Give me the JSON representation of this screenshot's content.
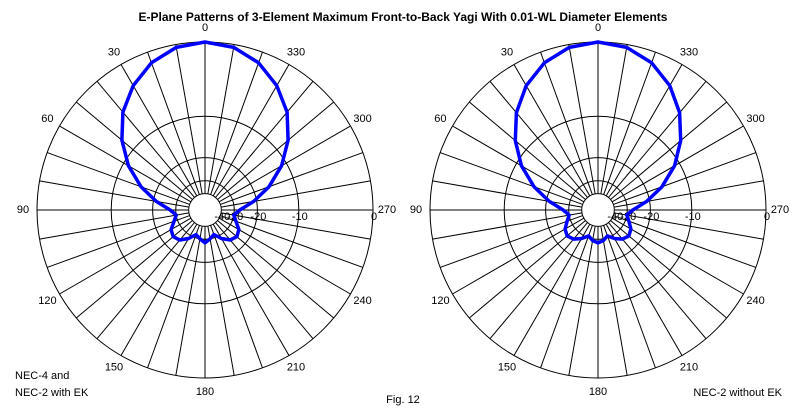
{
  "title": "E-Plane Patterns of 3-Element Maximum Front-to-Back Yagi With 0.01-WL Diameter Elements",
  "caption": "Fig. 12",
  "chart_data": [
    {
      "type": "polar",
      "annotation": [
        "NEC-4 and",
        "NEC-2 with EK"
      ],
      "thetaticks": [
        0,
        30,
        60,
        90,
        120,
        150,
        180,
        210,
        240,
        270,
        300,
        330
      ],
      "rticks": [
        -40,
        -30,
        -20,
        -10,
        0
      ],
      "rlim": [
        -40,
        0
      ],
      "rscale": "arrl-log",
      "series": [
        {
          "color": "#0000ff",
          "theta": [
            0,
            10,
            20,
            30,
            40,
            50,
            60,
            70,
            80,
            90,
            100,
            110,
            120,
            130,
            140,
            150,
            160,
            170,
            180,
            190,
            200,
            210,
            220,
            230,
            240,
            250,
            260,
            270,
            280,
            290,
            300,
            310,
            320,
            330,
            340,
            350
          ],
          "values": [
            0,
            -0.3,
            -1.2,
            -2.7,
            -4.7,
            -7.5,
            -11,
            -15.5,
            -21,
            -27,
            -30,
            -28,
            -25,
            -24,
            -25,
            -28,
            -32,
            -30,
            -28,
            -30,
            -32,
            -28,
            -25,
            -24,
            -25,
            -28,
            -30,
            -27,
            -21,
            -15.5,
            -11,
            -7.5,
            -4.7,
            -2.7,
            -1.2,
            -0.3
          ]
        }
      ]
    },
    {
      "type": "polar",
      "annotation": [
        "NEC-2 without EK"
      ],
      "thetaticks": [
        0,
        30,
        60,
        90,
        120,
        150,
        180,
        210,
        240,
        270,
        300,
        330
      ],
      "rticks": [
        -40,
        -30,
        -20,
        -10,
        0
      ],
      "rlim": [
        -40,
        0
      ],
      "rscale": "arrl-log",
      "series": [
        {
          "color": "#0000ff",
          "theta": [
            0,
            10,
            20,
            30,
            40,
            50,
            60,
            70,
            80,
            90,
            100,
            110,
            120,
            130,
            140,
            150,
            160,
            170,
            180,
            190,
            200,
            210,
            220,
            230,
            240,
            250,
            260,
            270,
            280,
            290,
            300,
            310,
            320,
            330,
            340,
            350
          ],
          "values": [
            0,
            -0.3,
            -1.2,
            -2.7,
            -4.8,
            -7.6,
            -11,
            -15.5,
            -21,
            -27,
            -30,
            -28,
            -25.5,
            -24.5,
            -25.5,
            -28,
            -31,
            -29,
            -28,
            -29,
            -31,
            -28,
            -25.5,
            -24.5,
            -25.5,
            -28,
            -30,
            -27,
            -21,
            -15.5,
            -11,
            -7.6,
            -4.8,
            -2.7,
            -1.2,
            -0.3
          ]
        }
      ]
    }
  ]
}
